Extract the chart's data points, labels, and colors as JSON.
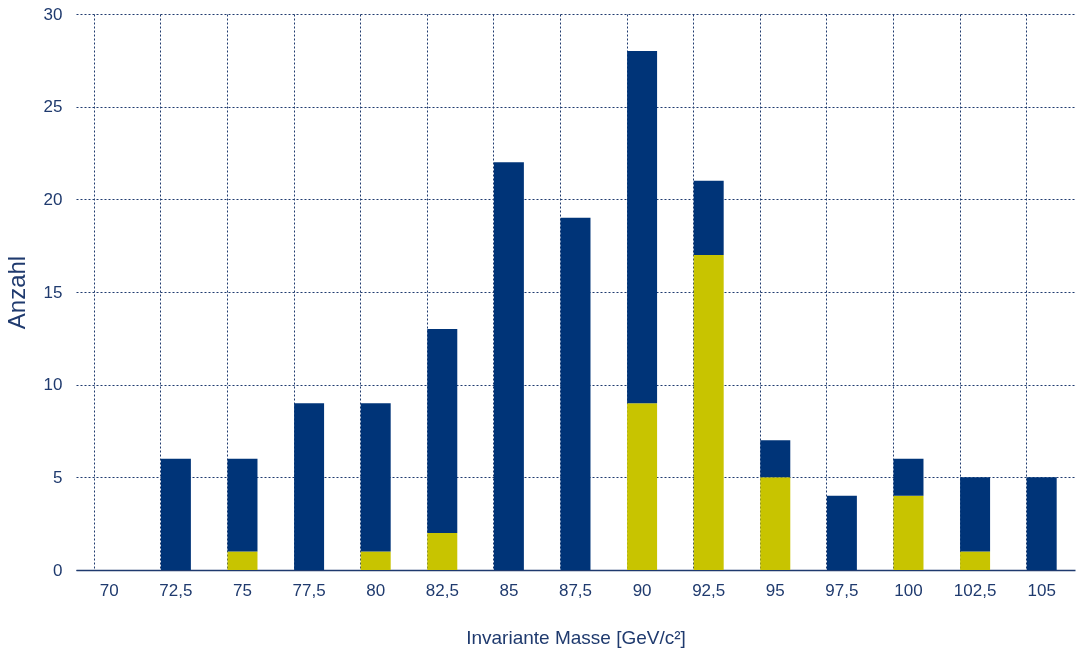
{
  "chart_data": {
    "type": "bar",
    "stacked": true,
    "xlabel": "Invariante Masse [GeV/c²]",
    "ylabel": "Anzahl",
    "categories": [
      "70",
      "72,5",
      "75",
      "77,5",
      "80",
      "82,5",
      "85",
      "87,5",
      "90",
      "92,5",
      "95",
      "97,5",
      "100",
      "102,5",
      "105"
    ],
    "series": [
      {
        "color": "#c8c400",
        "values": [
          0,
          0,
          1,
          0,
          1,
          2,
          0,
          0,
          9,
          17,
          5,
          0,
          4,
          1,
          0
        ]
      },
      {
        "color": "#003478",
        "values": [
          0,
          6,
          5,
          9,
          8,
          11,
          22,
          19,
          19,
          4,
          2,
          4,
          2,
          4,
          5
        ]
      }
    ],
    "ylim": [
      0,
      30
    ],
    "yticks": [
      0,
      5,
      10,
      15,
      20,
      25,
      30
    ],
    "grid": true
  }
}
